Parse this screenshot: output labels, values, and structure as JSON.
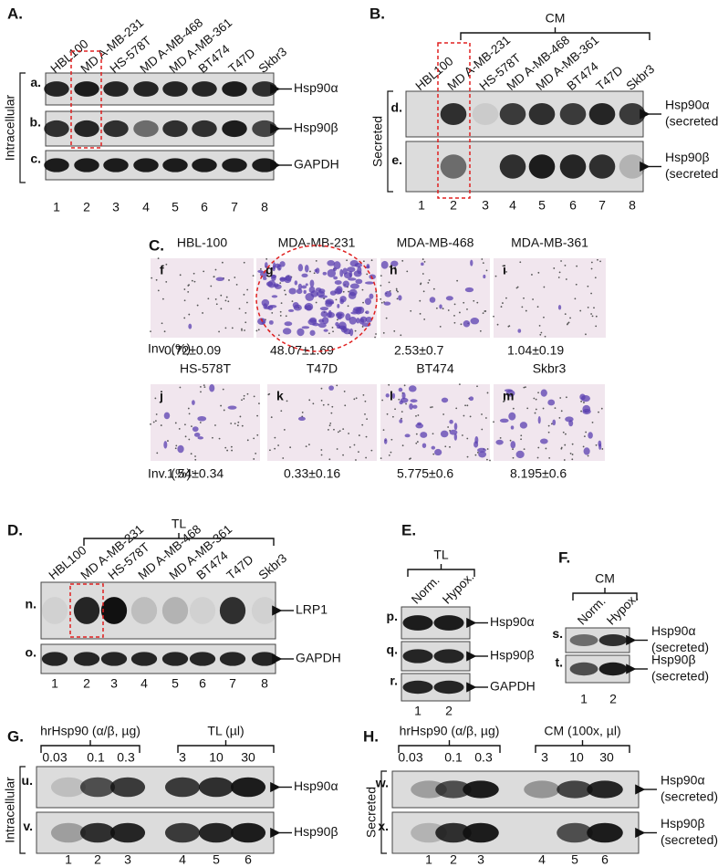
{
  "panels": [
    {
      "letter": "A.",
      "side_label": "Intracellular",
      "groups": [],
      "lanes": [
        "HBL100",
        "MD A-MB-231",
        "HS-578T",
        "MD A-MB-468",
        "MD A-MB-361",
        "BT474",
        "T47D",
        "Skbr3"
      ],
      "rows": [
        {
          "letter": "a.",
          "target": "Hsp90α"
        },
        {
          "letter": "b.",
          "target": "Hsp90β"
        },
        {
          "letter": "c.",
          "target": "GAPDH"
        }
      ],
      "lane_numbers": [
        1,
        2,
        3,
        4,
        5,
        6,
        7,
        8
      ]
    },
    {
      "letter": "B.",
      "side_label": "Secreted",
      "groups": [
        {
          "label": "CM"
        }
      ],
      "lanes": [
        "HBL100",
        "MD A-MB-231",
        "HS-578T",
        "MD A-MB-468",
        "MD A-MB-361",
        "BT474",
        "T47D",
        "Skbr3"
      ],
      "rows": [
        {
          "letter": "d.",
          "target": "Hsp90α",
          "note": "(secreted)"
        },
        {
          "letter": "e.",
          "target": "Hsp90β",
          "note": "(secreted)"
        }
      ],
      "lane_numbers": [
        1,
        2,
        3,
        4,
        5,
        6,
        7,
        8
      ]
    },
    {
      "letter": "C.",
      "row_label": "Inv. (%):",
      "images": [
        {
          "title": "HBL-100",
          "letter": "f",
          "invasion": "0.72±0.09"
        },
        {
          "title": "MDA-MB-231",
          "letter": "g",
          "invasion": "48.07±1.69"
        },
        {
          "title": "MDA-MB-468",
          "letter": "h",
          "invasion": "2.53±0.7"
        },
        {
          "title": "MDA-MB-361",
          "letter": "i",
          "invasion": "1.04±0.19"
        },
        {
          "title": "HS-578T",
          "letter": "j",
          "invasion": "1.54±0.34"
        },
        {
          "title": "T47D",
          "letter": "k",
          "invasion": "0.33±0.16"
        },
        {
          "title": "BT474",
          "letter": "l",
          "invasion": "5.775±0.6"
        },
        {
          "title": "Skbr3",
          "letter": "m",
          "invasion": "8.195±0.6"
        }
      ]
    },
    {
      "letter": "D.",
      "groups": [
        {
          "label": "TL"
        }
      ],
      "lanes": [
        "HBL100",
        "MD A-MB-231",
        "HS-578T",
        "MD A-MB-468",
        "MD A-MB-361",
        "BT474",
        "T47D",
        "Skbr3"
      ],
      "rows": [
        {
          "letter": "n.",
          "target": "LRP1"
        },
        {
          "letter": "o.",
          "target": "GAPDH"
        }
      ],
      "lane_numbers": [
        1,
        2,
        3,
        4,
        5,
        6,
        7,
        8
      ]
    },
    {
      "letter": "E.",
      "groups": [
        {
          "label": "TL"
        }
      ],
      "lanes": [
        "Norm.",
        "Hypox."
      ],
      "rows": [
        {
          "letter": "p.",
          "target": "Hsp90α"
        },
        {
          "letter": "q.",
          "target": "Hsp90β"
        },
        {
          "letter": "r.",
          "target": "GAPDH"
        }
      ],
      "lane_numbers": [
        1,
        2
      ]
    },
    {
      "letter": "F.",
      "groups": [
        {
          "label": "CM"
        }
      ],
      "lanes": [
        "Norm.",
        "Hypox."
      ],
      "rows": [
        {
          "letter": "s.",
          "target": "Hsp90α",
          "note": "(secreted)"
        },
        {
          "letter": "t.",
          "target": "Hsp90β",
          "note": "(secreted)"
        }
      ],
      "lane_numbers": [
        1,
        2
      ]
    },
    {
      "letter": "G.",
      "side_label": "Intracellular",
      "groups": [
        {
          "label": "hrHsp90 (α/β, µg)",
          "doses": [
            0.03,
            0.1,
            0.3
          ]
        },
        {
          "label": "TL (µl)",
          "doses": [
            3,
            10,
            30
          ]
        }
      ],
      "lanes": [],
      "rows": [
        {
          "letter": "u.",
          "target": "Hsp90α"
        },
        {
          "letter": "v.",
          "target": "Hsp90β"
        }
      ],
      "lane_numbers": [
        1,
        2,
        3,
        4,
        5,
        6
      ]
    },
    {
      "letter": "H.",
      "side_label": "Secreted",
      "groups": [
        {
          "label": "hrHsp90 (α/β, µg)",
          "doses": [
            0.03,
            0.1,
            0.3
          ]
        },
        {
          "label": "CM (100x, µl)",
          "doses": [
            3,
            10,
            30
          ]
        }
      ],
      "lanes": [],
      "rows": [
        {
          "letter": "w.",
          "target": "Hsp90α",
          "note": "(secreted)"
        },
        {
          "letter": "x.",
          "target": "Hsp90β",
          "note": "(secreted)"
        }
      ],
      "lane_numbers": [
        1,
        2,
        3,
        4,
        5,
        6
      ]
    }
  ]
}
